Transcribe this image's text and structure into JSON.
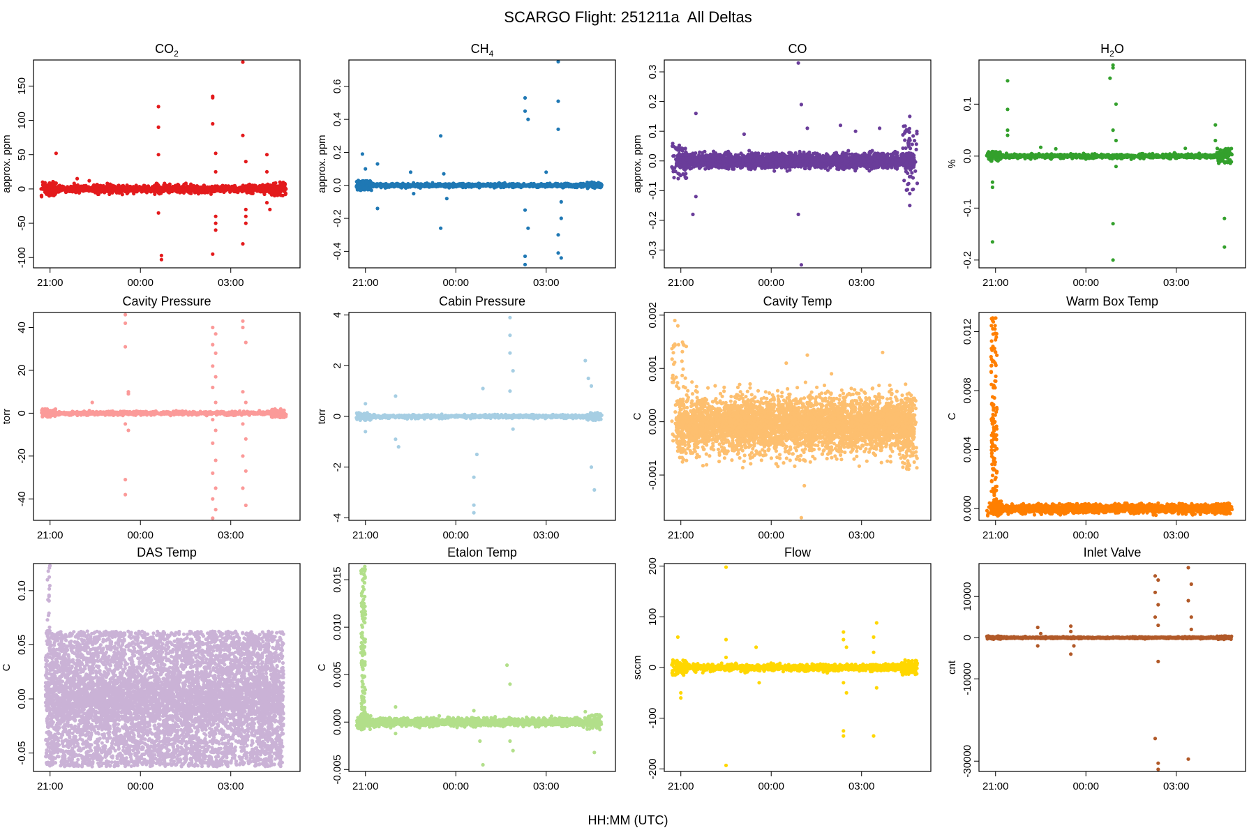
{
  "figure": {
    "title": "SCARGO Flight: 251211a  All Deltas",
    "xlabel": "HH:MM (UTC)"
  },
  "chart_data": [
    {
      "type": "scatter",
      "title": "CO",
      "title_sub": "2",
      "ylabel": "approx. ppm",
      "color": "#e31a1c",
      "yticks": [
        150,
        100,
        50,
        0,
        -50,
        -100
      ],
      "ylim": [
        -115,
        188
      ],
      "band": {
        "lo": -7,
        "hi": 7,
        "density": 2.2,
        "ends": [
          [
            -12,
            12,
            0.02
          ],
          [
            -10,
            10,
            0.055
          ]
        ]
      },
      "points": [
        [
          21.2,
          52
        ],
        [
          21.8,
          8
        ],
        [
          21.9,
          15
        ],
        [
          22.3,
          12
        ],
        [
          22.6,
          -5
        ],
        [
          22.9,
          8
        ],
        [
          22.9,
          5
        ],
        [
          23.4,
          -8
        ],
        [
          24.6,
          120
        ],
        [
          24.6,
          90
        ],
        [
          24.6,
          50
        ],
        [
          24.6,
          -35
        ],
        [
          24.7,
          -103
        ],
        [
          24.7,
          -97
        ],
        [
          24.8,
          8
        ],
        [
          26.4,
          133
        ],
        [
          26.4,
          135
        ],
        [
          26.4,
          95
        ],
        [
          26.5,
          52
        ],
        [
          26.5,
          25
        ],
        [
          26.5,
          -40
        ],
        [
          26.5,
          -50
        ],
        [
          26.5,
          -60
        ],
        [
          26.4,
          -95
        ],
        [
          27.4,
          185
        ],
        [
          27.4,
          78
        ],
        [
          27.5,
          40
        ],
        [
          27.5,
          -30
        ],
        [
          27.5,
          -40
        ],
        [
          27.5,
          -50
        ],
        [
          27.4,
          -80
        ],
        [
          28.2,
          50
        ],
        [
          28.2,
          25
        ],
        [
          28.2,
          -20
        ],
        [
          28.3,
          -30
        ]
      ]
    },
    {
      "type": "scatter",
      "title": "CH",
      "title_sub": "4",
      "ylabel": "approx. ppm",
      "color": "#1f78b4",
      "yticks": [
        0.6,
        0.4,
        0.2,
        0.0,
        -0.2,
        -0.4
      ],
      "ylim": [
        -0.5,
        0.76
      ],
      "band": {
        "lo": -0.013,
        "hi": 0.013,
        "density": 2.0,
        "ends": [
          [
            -0.03,
            0.03,
            0.04
          ],
          [
            -0.02,
            0.02,
            0.04
          ]
        ]
      },
      "points": [
        [
          20.9,
          0.19
        ],
        [
          21.0,
          0.1
        ],
        [
          21.4,
          0.13
        ],
        [
          21.4,
          -0.14
        ],
        [
          22.5,
          0.08
        ],
        [
          22.6,
          -0.05
        ],
        [
          23.5,
          0.3
        ],
        [
          23.5,
          -0.26
        ],
        [
          23.6,
          0.07
        ],
        [
          23.7,
          -0.08
        ],
        [
          26.3,
          0.53
        ],
        [
          26.3,
          0.45
        ],
        [
          26.4,
          0.4
        ],
        [
          26.3,
          -0.15
        ],
        [
          26.4,
          -0.26
        ],
        [
          26.3,
          -0.43
        ],
        [
          26.3,
          -0.48
        ],
        [
          27.0,
          0.08
        ],
        [
          27.4,
          0.75
        ],
        [
          27.4,
          0.51
        ],
        [
          27.4,
          0.34
        ],
        [
          27.5,
          -0.1
        ],
        [
          27.5,
          -0.2
        ],
        [
          27.4,
          -0.3
        ],
        [
          27.4,
          -0.41
        ],
        [
          27.5,
          -0.44
        ]
      ]
    },
    {
      "type": "scatter",
      "title": "CO",
      "title_sub": "",
      "ylabel": "approx. ppm",
      "color": "#6a3d9a",
      "yticks": [
        0.3,
        0.2,
        0.1,
        0.0,
        -0.1,
        -0.2,
        -0.3
      ],
      "ylim": [
        -0.36,
        0.34
      ],
      "band": {
        "lo": -0.028,
        "hi": 0.028,
        "density": 5.5,
        "ends": [
          [
            -0.06,
            0.06,
            0.05
          ],
          [
            -0.1,
            0.12,
            0.04
          ]
        ]
      },
      "points": [
        [
          21.5,
          0.16
        ],
        [
          21.4,
          -0.18
        ],
        [
          21.5,
          -0.12
        ],
        [
          23.1,
          0.09
        ],
        [
          24.9,
          0.33
        ],
        [
          25.0,
          0.19
        ],
        [
          24.9,
          -0.18
        ],
        [
          25.0,
          -0.35
        ],
        [
          25.2,
          0.11
        ],
        [
          26.3,
          0.12
        ],
        [
          26.8,
          0.1
        ],
        [
          27.6,
          0.11
        ],
        [
          28.6,
          0.15
        ],
        [
          28.6,
          -0.15
        ],
        [
          28.6,
          -0.11
        ]
      ]
    },
    {
      "type": "scatter",
      "title": "H",
      "title_sub": "2",
      "title_after": "O",
      "ylabel": "%",
      "color": "#33a02c",
      "yticks": [
        0.1,
        0.0,
        -0.1,
        -0.2
      ],
      "ylim": [
        -0.215,
        0.185
      ],
      "band": {
        "lo": -0.005,
        "hi": 0.005,
        "density": 1.6,
        "ends": [
          [
            -0.01,
            0.01,
            0.03
          ],
          [
            -0.015,
            0.015,
            0.05
          ]
        ]
      },
      "points": [
        [
          20.9,
          -0.165
        ],
        [
          20.9,
          -0.06
        ],
        [
          20.9,
          -0.05
        ],
        [
          21.4,
          0.145
        ],
        [
          21.4,
          0.09
        ],
        [
          21.4,
          0.05
        ],
        [
          21.4,
          0.04
        ],
        [
          22.5,
          0.017
        ],
        [
          23.0,
          0.014
        ],
        [
          24.9,
          0.175
        ],
        [
          24.9,
          0.17
        ],
        [
          24.8,
          0.15
        ],
        [
          25.0,
          0.1
        ],
        [
          24.9,
          0.05
        ],
        [
          25.0,
          -0.02
        ],
        [
          24.9,
          -0.13
        ],
        [
          24.9,
          -0.2
        ],
        [
          25.0,
          0.03
        ],
        [
          27.3,
          0.015
        ],
        [
          28.3,
          0.06
        ],
        [
          28.3,
          0.03
        ],
        [
          28.6,
          -0.12
        ],
        [
          28.6,
          -0.175
        ]
      ]
    },
    {
      "type": "scatter",
      "title": "Cavity Pressure",
      "ylabel": "torr",
      "color": "#fb9a99",
      "yticks": [
        40,
        20,
        0,
        -20,
        -40
      ],
      "ylim": [
        -50,
        47
      ],
      "band": {
        "lo": -1,
        "hi": 1,
        "density": 1.5,
        "ends": [
          [
            -2,
            2,
            0.05
          ],
          [
            -2,
            2,
            0.05
          ]
        ]
      },
      "points": [
        [
          22.4,
          5
        ],
        [
          23.5,
          46
        ],
        [
          23.5,
          42
        ],
        [
          23.5,
          31
        ],
        [
          23.6,
          9
        ],
        [
          23.6,
          10
        ],
        [
          23.5,
          -5
        ],
        [
          23.6,
          -8
        ],
        [
          23.5,
          -31
        ],
        [
          23.5,
          -38
        ],
        [
          26.4,
          40
        ],
        [
          26.5,
          37
        ],
        [
          26.4,
          32
        ],
        [
          26.5,
          28
        ],
        [
          26.4,
          22
        ],
        [
          26.5,
          17
        ],
        [
          26.4,
          12
        ],
        [
          26.5,
          5
        ],
        [
          26.4,
          -3
        ],
        [
          26.5,
          -8
        ],
        [
          26.4,
          -14
        ],
        [
          26.5,
          -22
        ],
        [
          26.4,
          -28
        ],
        [
          26.5,
          -35
        ],
        [
          26.4,
          -40
        ],
        [
          26.5,
          -45
        ],
        [
          26.4,
          -49
        ],
        [
          27.4,
          43
        ],
        [
          27.4,
          40
        ],
        [
          27.5,
          33
        ],
        [
          27.4,
          10
        ],
        [
          27.5,
          5
        ],
        [
          27.4,
          -5
        ],
        [
          27.5,
          -12
        ],
        [
          27.4,
          -20
        ],
        [
          27.5,
          -27
        ],
        [
          27.4,
          -35
        ],
        [
          27.5,
          -43
        ]
      ]
    },
    {
      "type": "scatter",
      "title": "Cabin Pressure",
      "ylabel": "torr",
      "color": "#a6cee3",
      "yticks": [
        4,
        2,
        0,
        -2,
        -4
      ],
      "ylim": [
        -4.1,
        4.1
      ],
      "band": {
        "lo": -0.08,
        "hi": 0.08,
        "density": 1.5,
        "ends": [
          [
            -0.15,
            0.15,
            0.04
          ],
          [
            -0.15,
            0.15,
            0.04
          ]
        ]
      },
      "points": [
        [
          21.0,
          0.5
        ],
        [
          21.0,
          -0.6
        ],
        [
          22.0,
          0.8
        ],
        [
          22.1,
          -1.2
        ],
        [
          22.0,
          -0.9
        ],
        [
          24.6,
          -2.4
        ],
        [
          24.6,
          -3.5
        ],
        [
          24.6,
          -3.8
        ],
        [
          24.7,
          -1.5
        ],
        [
          24.9,
          1.1
        ],
        [
          25.8,
          3.9
        ],
        [
          25.8,
          3.2
        ],
        [
          25.8,
          2.5
        ],
        [
          25.9,
          1.8
        ],
        [
          25.8,
          1.0
        ],
        [
          25.9,
          -0.5
        ],
        [
          28.3,
          2.2
        ],
        [
          28.4,
          1.5
        ],
        [
          28.5,
          1.2
        ],
        [
          28.5,
          -2.0
        ],
        [
          28.6,
          -2.9
        ]
      ]
    },
    {
      "type": "scatter",
      "title": "Cavity Temp",
      "ylabel": "C",
      "color": "#fdbf6f",
      "yticks": [
        0.002,
        0.001,
        0.0,
        -0.001
      ],
      "ylim": [
        -0.00185,
        0.00205
      ],
      "band": {
        "lo": -0.0007,
        "hi": 0.0006,
        "density": 7.5,
        "ends": [
          [
            -0.0006,
            0.0015,
            0.03
          ],
          [
            -0.0009,
            0.0005,
            0.02
          ]
        ]
      },
      "points": [
        [
          20.8,
          0.0019
        ],
        [
          20.9,
          0.0018
        ],
        [
          24.5,
          0.0011
        ],
        [
          25.2,
          0.00125
        ],
        [
          25.1,
          -0.0012
        ],
        [
          25.0,
          -0.0018
        ],
        [
          27.7,
          0.0013
        ],
        [
          26.0,
          0.0009
        ]
      ]
    },
    {
      "type": "scatter",
      "title": "Warm Box Temp",
      "ylabel": "C",
      "color": "#ff7f00",
      "yticks": [
        0.012,
        0.008,
        0.004,
        0.0
      ],
      "ylim": [
        -0.0008,
        0.0133
      ],
      "band": {
        "lo": -0.00035,
        "hi": 0.00035,
        "density": 3.5,
        "ends": [
          [
            -0.0005,
            0.0005,
            0.02
          ],
          [
            -0.0004,
            0.0004,
            0.02
          ]
        ]
      },
      "spike": {
        "x0": 20.85,
        "x1": 21.05,
        "ymax": 0.013,
        "n": 130
      },
      "points": []
    },
    {
      "type": "scatter",
      "title": "DAS Temp",
      "ylabel": "C",
      "color": "#cab2d6",
      "yticks": [
        0.1,
        0.05,
        0.0,
        -0.05
      ],
      "ylim": [
        -0.067,
        0.125
      ],
      "band": {
        "lo": -0.0625,
        "hi": 0.0625,
        "density": 12,
        "ends": []
      },
      "spike": {
        "x0": 20.9,
        "x1": 21.0,
        "ymax": 0.125,
        "n": 20
      },
      "points": []
    },
    {
      "type": "scatter",
      "title": "Etalon Temp",
      "ylabel": "C",
      "color": "#b2df8a",
      "yticks": [
        0.015,
        0.01,
        0.005,
        0.0,
        -0.005
      ],
      "ylim": [
        -0.0052,
        0.0167
      ],
      "band": {
        "lo": -0.0005,
        "hi": 0.0005,
        "density": 3,
        "ends": [
          [
            -0.0008,
            0.0008,
            0.02
          ],
          [
            -0.0008,
            0.0008,
            0.03
          ]
        ]
      },
      "spike": {
        "x0": 20.85,
        "x1": 21.0,
        "ymax": 0.0165,
        "n": 120
      },
      "points": [
        [
          22.0,
          0.0016
        ],
        [
          22.0,
          -0.0012
        ],
        [
          24.6,
          0.0012
        ],
        [
          24.8,
          -0.002
        ],
        [
          24.9,
          -0.0045
        ],
        [
          25.7,
          0.006
        ],
        [
          25.8,
          0.004
        ],
        [
          25.8,
          -0.002
        ],
        [
          25.9,
          -0.003
        ],
        [
          28.3,
          0.0011
        ],
        [
          28.6,
          0.0005
        ],
        [
          28.6,
          -0.0032
        ]
      ]
    },
    {
      "type": "scatter",
      "title": "Flow",
      "ylabel": "sccm",
      "color": "#ffd700",
      "yticks": [
        200,
        100,
        0,
        -100,
        -200
      ],
      "ylim": [
        -205,
        205
      ],
      "band": {
        "lo": -8,
        "hi": 8,
        "density": 2.2,
        "ends": [
          [
            -15,
            15,
            0.05
          ],
          [
            -15,
            15,
            0.05
          ]
        ]
      },
      "points": [
        [
          20.9,
          60
        ],
        [
          21.0,
          -50
        ],
        [
          21.0,
          -60
        ],
        [
          22.5,
          198
        ],
        [
          22.5,
          -193
        ],
        [
          22.5,
          55
        ],
        [
          22.5,
          20
        ],
        [
          23.5,
          40
        ],
        [
          23.6,
          -30
        ],
        [
          26.4,
          70
        ],
        [
          26.4,
          55
        ],
        [
          26.5,
          40
        ],
        [
          26.4,
          -30
        ],
        [
          26.4,
          -125
        ],
        [
          26.4,
          -135
        ],
        [
          26.5,
          -50
        ],
        [
          27.5,
          88
        ],
        [
          27.4,
          60
        ],
        [
          27.4,
          30
        ],
        [
          27.5,
          -40
        ],
        [
          27.4,
          -135
        ]
      ]
    },
    {
      "type": "scatter",
      "title": "Inlet Valve",
      "ylabel": "cnt",
      "color": "#b15928",
      "yticks": [
        10000,
        0,
        -10000,
        -30000
      ],
      "ylim": [
        -32500,
        18000
      ],
      "band": {
        "lo": -250,
        "hi": 250,
        "density": 1.4,
        "ends": [
          [
            -400,
            400,
            0.03
          ],
          [
            -400,
            400,
            0.03
          ]
        ]
      },
      "points": [
        [
          22.4,
          2500
        ],
        [
          22.4,
          -2000
        ],
        [
          22.5,
          1000
        ],
        [
          23.5,
          2800
        ],
        [
          23.5,
          1500
        ],
        [
          23.5,
          -4000
        ],
        [
          23.6,
          -2000
        ],
        [
          26.3,
          15000
        ],
        [
          26.4,
          14000
        ],
        [
          26.3,
          11000
        ],
        [
          26.4,
          8000
        ],
        [
          26.3,
          5000
        ],
        [
          26.4,
          3000
        ],
        [
          26.4,
          -5800
        ],
        [
          26.3,
          -24500
        ],
        [
          26.4,
          -30500
        ],
        [
          26.4,
          -32000
        ],
        [
          27.4,
          17000
        ],
        [
          27.5,
          13000
        ],
        [
          27.4,
          9000
        ],
        [
          27.5,
          5000
        ],
        [
          27.5,
          2000
        ],
        [
          27.4,
          -29500
        ]
      ]
    }
  ],
  "xaxis": {
    "ticks": [
      "21:00",
      "00:00",
      "03:00"
    ],
    "tick_hours": [
      21,
      24,
      27
    ],
    "range": [
      20.45,
      29.3
    ]
  }
}
